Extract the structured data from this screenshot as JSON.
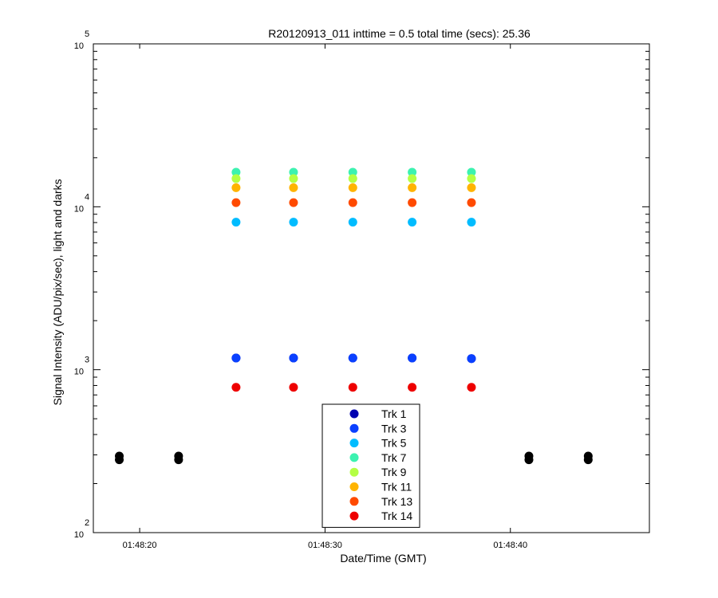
{
  "chart_data": {
    "type": "scatter",
    "title": "R20120913_011 inttime = 0.5 total time (secs): 25.36",
    "xlabel": "Date/Time (GMT)",
    "ylabel": "Signal Intensity (ADU/pix/sec), light and darks",
    "y_scale": "log",
    "ylim_exponents": [
      2,
      5
    ],
    "y_tick_base": "10",
    "y_tick_exponents": [
      "2",
      "3",
      "4",
      "5"
    ],
    "x_axis": "time",
    "xlim": [
      "01:48:17.5",
      "01:48:47.5"
    ],
    "x_ticks": [
      "01:48:20",
      "01:48:30",
      "01:48:40"
    ],
    "grid": false,
    "legend_placement": "bottom-center",
    "x_times": [
      "01:48:25.2",
      "01:48:28.3",
      "01:48:31.5",
      "01:48:34.7",
      "01:48:37.9"
    ],
    "series": [
      {
        "name": "Trk 1",
        "color": "#0000b0",
        "values": [
          1180,
          1180,
          1180,
          1180,
          1170
        ]
      },
      {
        "name": "Trk 3",
        "color": "#0a40ff",
        "values": [
          1180,
          1180,
          1180,
          1180,
          1170
        ]
      },
      {
        "name": "Trk 5",
        "color": "#00bcff",
        "values": [
          8050,
          8050,
          8050,
          8050,
          8050
        ]
      },
      {
        "name": "Trk 7",
        "color": "#3cf2b0",
        "values": [
          16300,
          16300,
          16300,
          16300,
          16300
        ]
      },
      {
        "name": "Trk 9",
        "color": "#b4ff44",
        "values": [
          14900,
          14900,
          14900,
          14900,
          14900
        ]
      },
      {
        "name": "Trk 11",
        "color": "#ffb400",
        "values": [
          13100,
          13100,
          13100,
          13100,
          13100
        ]
      },
      {
        "name": "Trk 13",
        "color": "#ff4a00",
        "values": [
          10600,
          10600,
          10600,
          10600,
          10600
        ]
      },
      {
        "name": "Trk 14",
        "color": "#ee0000",
        "values": [
          780,
          780,
          780,
          780,
          780
        ]
      }
    ],
    "darks": {
      "color": "#000000",
      "x": [
        "01:48:18.9",
        "01:48:22.1",
        "01:48:41.0",
        "01:48:44.2"
      ],
      "values": [
        [
          280,
          295
        ],
        [
          280,
          295
        ],
        [
          280,
          295
        ],
        [
          280,
          295
        ]
      ]
    }
  }
}
